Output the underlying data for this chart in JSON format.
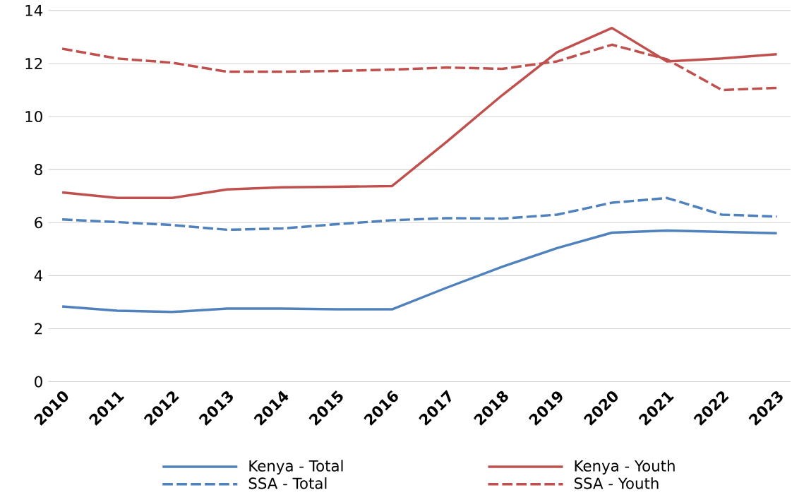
{
  "chart_data": {
    "type": "line",
    "categories": [
      "2010",
      "2011",
      "2012",
      "2013",
      "2014",
      "2015",
      "2016",
      "2017",
      "2018",
      "2019",
      "2020",
      "2021",
      "2022",
      "2023"
    ],
    "series": [
      {
        "name": "Kenya - Total",
        "color": "#4f81bd",
        "line_style": "solid",
        "values": [
          2.84,
          2.68,
          2.63,
          2.76,
          2.76,
          2.73,
          2.73,
          3.55,
          4.33,
          5.04,
          5.62,
          5.7,
          5.65,
          5.6
        ]
      },
      {
        "name": "Kenya - Youth",
        "color": "#c0504d",
        "line_style": "solid",
        "values": [
          7.14,
          6.93,
          6.93,
          7.25,
          7.33,
          7.35,
          7.38,
          9.06,
          10.8,
          12.42,
          13.34,
          12.08,
          12.19,
          12.35
        ]
      },
      {
        "name": "SSA - Total",
        "color": "#4f81bd",
        "line_style": "dashed",
        "values": [
          6.12,
          6.02,
          5.91,
          5.73,
          5.78,
          5.94,
          6.09,
          6.17,
          6.15,
          6.3,
          6.75,
          6.93,
          6.3,
          6.23
        ]
      },
      {
        "name": "SSA - Youth",
        "color": "#c0504d",
        "line_style": "dashed",
        "values": [
          12.56,
          12.19,
          12.03,
          11.69,
          11.69,
          11.72,
          11.77,
          11.85,
          11.8,
          12.08,
          12.71,
          12.16,
          11.0,
          11.08
        ]
      }
    ],
    "ylim": [
      0,
      14
    ],
    "yticks": [
      0,
      2,
      4,
      6,
      8,
      10,
      12,
      14
    ],
    "grid": "y",
    "legend": "bottom"
  }
}
